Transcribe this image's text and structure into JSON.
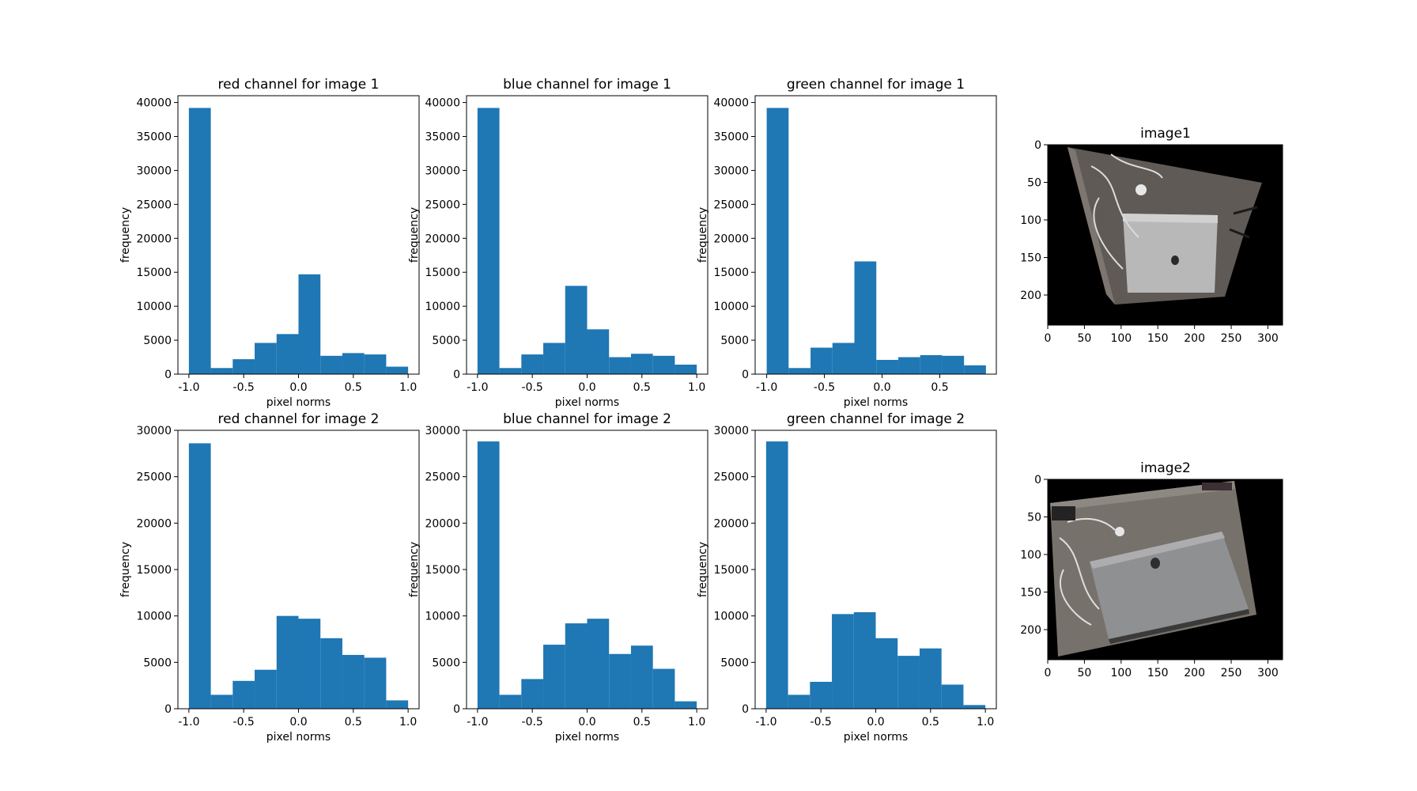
{
  "figure": {
    "bar_color": "#1f77b4",
    "axis_color": "#000000",
    "background": "#ffffff"
  },
  "chart_data": [
    {
      "type": "bar",
      "title": "red channel for image 1",
      "xlabel": "pixel norms",
      "ylabel": "frequency",
      "xlim": [
        -1.1,
        1.1
      ],
      "ylim": [
        0,
        41000
      ],
      "xticks": [
        "-1.0",
        "-0.5",
        "0.0",
        "0.5",
        "1.0"
      ],
      "xtick_values": [
        -1.0,
        -0.5,
        0.0,
        0.5,
        1.0
      ],
      "yticks": [
        "0",
        "5000",
        "10000",
        "15000",
        "20000",
        "25000",
        "30000",
        "35000",
        "40000"
      ],
      "ytick_values": [
        0,
        5000,
        10000,
        15000,
        20000,
        25000,
        30000,
        35000,
        40000
      ],
      "bin_edges": [
        -1.0,
        -0.8,
        -0.6,
        -0.4,
        -0.2,
        0.0,
        0.2,
        0.4,
        0.6,
        0.8,
        1.0
      ],
      "values": [
        39200,
        900,
        2200,
        4600,
        5900,
        14700,
        2700,
        3100,
        2900,
        1100
      ]
    },
    {
      "type": "bar",
      "title": "blue channel for image 1",
      "xlabel": "pixel norms",
      "ylabel": "frequency",
      "xlim": [
        -1.1,
        1.1
      ],
      "ylim": [
        0,
        41000
      ],
      "xticks": [
        "-1.0",
        "-0.5",
        "0.0",
        "0.5",
        "1.0"
      ],
      "xtick_values": [
        -1.0,
        -0.5,
        0.0,
        0.5,
        1.0
      ],
      "yticks": [
        "0",
        "5000",
        "10000",
        "15000",
        "20000",
        "25000",
        "30000",
        "35000",
        "40000"
      ],
      "ytick_values": [
        0,
        5000,
        10000,
        15000,
        20000,
        25000,
        30000,
        35000,
        40000
      ],
      "bin_edges": [
        -1.0,
        -0.8,
        -0.6,
        -0.4,
        -0.2,
        0.0,
        0.2,
        0.4,
        0.6,
        0.8,
        1.0
      ],
      "values": [
        39200,
        900,
        2900,
        4600,
        13000,
        6600,
        2500,
        3000,
        2700,
        1400
      ]
    },
    {
      "type": "bar",
      "title": "green channel for image 1",
      "xlabel": "pixel norms",
      "ylabel": "frequency",
      "xlim": [
        -1.1,
        0.99
      ],
      "ylim": [
        0,
        41000
      ],
      "xticks": [
        "-1.0",
        "-0.5",
        "0.0",
        "0.5"
      ],
      "xtick_values": [
        -1.0,
        -0.5,
        0.0,
        0.5
      ],
      "yticks": [
        "0",
        "5000",
        "10000",
        "15000",
        "20000",
        "25000",
        "30000",
        "35000",
        "40000"
      ],
      "ytick_values": [
        0,
        5000,
        10000,
        15000,
        20000,
        25000,
        30000,
        35000,
        40000
      ],
      "bin_edges": [
        -1.0,
        -0.81,
        -0.62,
        -0.43,
        -0.24,
        -0.05,
        0.14,
        0.33,
        0.52,
        0.71,
        0.9
      ],
      "values": [
        39200,
        900,
        3900,
        4600,
        16600,
        2100,
        2500,
        2800,
        2700,
        1300
      ]
    },
    {
      "type": "bar",
      "title": "red channel for image 2",
      "xlabel": "pixel norms",
      "ylabel": "frequency",
      "xlim": [
        -1.1,
        1.1
      ],
      "ylim": [
        0,
        30000
      ],
      "xticks": [
        "-1.0",
        "-0.5",
        "0.0",
        "0.5",
        "1.0"
      ],
      "xtick_values": [
        -1.0,
        -0.5,
        0.0,
        0.5,
        1.0
      ],
      "yticks": [
        "0",
        "5000",
        "10000",
        "15000",
        "20000",
        "25000",
        "30000"
      ],
      "ytick_values": [
        0,
        5000,
        10000,
        15000,
        20000,
        25000,
        30000
      ],
      "bin_edges": [
        -1.0,
        -0.8,
        -0.6,
        -0.4,
        -0.2,
        0.0,
        0.2,
        0.4,
        0.6,
        0.8,
        1.0
      ],
      "values": [
        28600,
        1500,
        3000,
        4200,
        10000,
        9700,
        7600,
        5800,
        5500,
        900
      ]
    },
    {
      "type": "bar",
      "title": "blue channel for image 2",
      "xlabel": "pixel norms",
      "ylabel": "frequency",
      "xlim": [
        -1.1,
        1.1
      ],
      "ylim": [
        0,
        30000
      ],
      "xticks": [
        "-1.0",
        "-0.5",
        "0.0",
        "0.5",
        "1.0"
      ],
      "xtick_values": [
        -1.0,
        -0.5,
        0.0,
        0.5,
        1.0
      ],
      "yticks": [
        "0",
        "5000",
        "10000",
        "15000",
        "20000",
        "25000",
        "30000"
      ],
      "ytick_values": [
        0,
        5000,
        10000,
        15000,
        20000,
        25000,
        30000
      ],
      "bin_edges": [
        -1.0,
        -0.8,
        -0.6,
        -0.4,
        -0.2,
        0.0,
        0.2,
        0.4,
        0.6,
        0.8,
        1.0
      ],
      "values": [
        28800,
        1500,
        3200,
        6900,
        9200,
        9700,
        5900,
        6800,
        4300,
        800
      ]
    },
    {
      "type": "bar",
      "title": "green channel for image 2",
      "xlabel": "pixel norms",
      "ylabel": "frequency",
      "xlim": [
        -1.1,
        1.1
      ],
      "ylim": [
        0,
        30000
      ],
      "xticks": [
        "-1.0",
        "-0.5",
        "0.0",
        "0.5",
        "1.0"
      ],
      "xtick_values": [
        -1.0,
        -0.5,
        0.0,
        0.5,
        1.0
      ],
      "yticks": [
        "0",
        "5000",
        "10000",
        "15000",
        "20000",
        "25000",
        "30000"
      ],
      "ytick_values": [
        0,
        5000,
        10000,
        15000,
        20000,
        25000,
        30000
      ],
      "bin_edges": [
        -1.0,
        -0.8,
        -0.6,
        -0.4,
        -0.2,
        0.0,
        0.2,
        0.4,
        0.6,
        0.8,
        1.0
      ],
      "values": [
        28800,
        1500,
        2900,
        10200,
        10400,
        7600,
        5700,
        6500,
        2600,
        400
      ]
    }
  ],
  "images": [
    {
      "title": "image1",
      "xlim": [
        0,
        320
      ],
      "ylim": [
        240,
        0
      ],
      "xticks": [
        "0",
        "50",
        "100",
        "150",
        "200",
        "250",
        "300"
      ],
      "xtick_values": [
        0,
        50,
        100,
        150,
        200,
        250,
        300
      ],
      "yticks": [
        "0",
        "50",
        "100",
        "150",
        "200"
      ],
      "ytick_values": [
        0,
        50,
        100,
        150,
        200
      ]
    },
    {
      "title": "image2",
      "xlim": [
        0,
        320
      ],
      "ylim": [
        240,
        0
      ],
      "xticks": [
        "0",
        "50",
        "100",
        "150",
        "200",
        "250",
        "300"
      ],
      "xtick_values": [
        0,
        50,
        100,
        150,
        200,
        250,
        300
      ],
      "yticks": [
        "0",
        "50",
        "100",
        "150",
        "200"
      ],
      "ytick_values": [
        0,
        50,
        100,
        150,
        200
      ]
    }
  ]
}
